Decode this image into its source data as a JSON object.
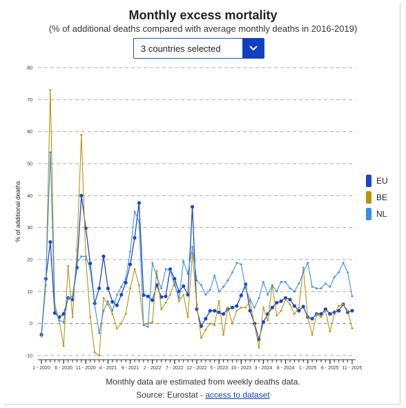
{
  "header": {
    "title": "Monthly excess mortality",
    "subtitle": "(% of additional deaths compared with average monthly deaths in 2016-2019)"
  },
  "selector": {
    "label": "3 countries selected",
    "icon": "chevron-down-icon"
  },
  "footer": {
    "note": "Monthly data are estimated from weekly deaths data.",
    "source_prefix": "Source: Eurostat - ",
    "source_link": "access to dataset"
  },
  "chart_data": {
    "type": "line",
    "title": "Monthly excess mortality",
    "subtitle": "(% of additional deaths compared with average monthly deaths in 2016-2019)",
    "xlabel": "",
    "ylabel": "% of additional deaths",
    "ylim": [
      -10,
      80
    ],
    "yticks": [
      -10,
      0,
      10,
      20,
      30,
      40,
      50,
      60,
      70,
      80
    ],
    "grid": "horizontal-dashed",
    "legend": "right",
    "xtick_labels": [
      {
        "index": 0,
        "label": "1 - 2020"
      },
      {
        "index": 5,
        "label": "6 - 2020"
      },
      {
        "index": 10,
        "label": "11 - 2020"
      },
      {
        "index": 15,
        "label": "4 - 2021"
      },
      {
        "index": 20,
        "label": "9 - 2021"
      },
      {
        "index": 25,
        "label": "2 - 2022"
      },
      {
        "index": 30,
        "label": "7 - 2022"
      },
      {
        "index": 35,
        "label": "12 - 2022"
      },
      {
        "index": 40,
        "label": "5 - 2023"
      },
      {
        "index": 45,
        "label": "10 - 2023"
      },
      {
        "index": 50,
        "label": "3 - 2024"
      },
      {
        "index": 55,
        "label": "8 - 2024"
      },
      {
        "index": 60,
        "label": "1 - 2025"
      },
      {
        "index": 65,
        "label": "6 - 2025"
      },
      {
        "index": 70,
        "label": "11 - 2025"
      }
    ],
    "series": [
      {
        "name": "EU",
        "color": "#1a47c8",
        "values": [
          -3.5,
          14,
          25.5,
          3.3,
          2,
          3,
          8,
          7.5,
          17.5,
          40,
          29.8,
          18.8,
          6.3,
          11,
          21,
          11,
          6.8,
          5.7,
          9,
          12.8,
          18.5,
          26.8,
          37.7,
          8.9,
          8.5,
          7.3,
          12,
          8.3,
          8.5,
          17,
          14,
          10,
          11.7,
          9,
          36.5,
          4.5,
          -0.8,
          1.5,
          4,
          4,
          3.5,
          3,
          4.5,
          5,
          5.5,
          8.8,
          12.3,
          4,
          0,
          -5,
          0.5,
          3,
          5,
          6.5,
          7,
          8,
          7.5,
          5.5,
          4,
          5.3,
          2,
          1.5,
          3,
          3,
          4.5,
          3,
          3.5,
          4,
          6,
          3.5,
          4
        ]
      },
      {
        "name": "BE",
        "color": "#b8940c",
        "values": [
          -4,
          12,
          73,
          6,
          1,
          -7,
          18,
          2,
          23,
          59,
          20,
          2,
          -9,
          -10,
          8,
          6,
          3,
          -1.5,
          0,
          3,
          11,
          17,
          12,
          -0.5,
          0,
          0.5,
          16.5,
          4.5,
          6.5,
          9,
          13,
          7,
          9,
          2,
          22,
          6,
          -4.5,
          -2,
          0,
          -0.5,
          7,
          -3.5,
          5,
          0,
          4,
          5,
          5,
          7,
          -0.5,
          -7.5,
          5,
          1,
          12,
          2.5,
          4,
          7.5,
          6,
          3,
          5,
          17.5,
          2,
          -3.5,
          3,
          2,
          4,
          -2.5,
          3,
          5.5,
          6,
          4,
          -1.5
        ]
      },
      {
        "name": "NL",
        "color": "#3a8ee6",
        "values": [
          -3,
          13.5,
          53.5,
          4.5,
          1,
          0.5,
          8,
          8.5,
          19,
          21,
          21,
          17,
          6,
          -3,
          4,
          7,
          4,
          9,
          11.5,
          14,
          22.5,
          35,
          32,
          -0.5,
          -1,
          19,
          14.5,
          11,
          17,
          16.5,
          12,
          8,
          19.5,
          15.5,
          24,
          13.5,
          12,
          9,
          10.5,
          15,
          10,
          11.5,
          13.5,
          16,
          19,
          18.5,
          11,
          7.5,
          5,
          8,
          13,
          9,
          12,
          10,
          13,
          13,
          11,
          10,
          12.5,
          16,
          19,
          11.5,
          11,
          11,
          12.5,
          11.5,
          14.5,
          16,
          19,
          16,
          8.5
        ]
      }
    ]
  }
}
